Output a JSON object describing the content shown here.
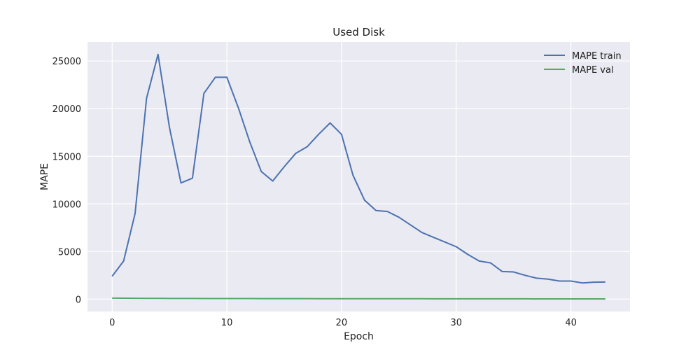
{
  "chart_data": {
    "type": "line",
    "title": "Used Disk",
    "xlabel": "Epoch",
    "ylabel": "MAPE",
    "xlim": [
      -2.15,
      45.15
    ],
    "ylim": [
      -1300,
      27000
    ],
    "xticks": [
      0,
      10,
      20,
      30,
      40
    ],
    "yticks": [
      0,
      5000,
      10000,
      15000,
      20000,
      25000
    ],
    "grid": true,
    "legend_position": "top-right",
    "background_color": "#eaeaf2",
    "grid_color": "#ffffff",
    "series": [
      {
        "name": "MAPE train",
        "color": "#4c72b0",
        "x": [
          0,
          1,
          2,
          3,
          4,
          5,
          6,
          7,
          8,
          9,
          10,
          11,
          12,
          13,
          14,
          15,
          16,
          17,
          18,
          19,
          20,
          21,
          22,
          23,
          24,
          25,
          26,
          27,
          28,
          29,
          30,
          31,
          32,
          33,
          34,
          35,
          36,
          37,
          38,
          39,
          40,
          41,
          42,
          43
        ],
        "values": [
          2400,
          4000,
          9000,
          21100,
          25700,
          18000,
          12200,
          12700,
          21600,
          23300,
          23300,
          20100,
          16500,
          13400,
          12400,
          13900,
          15300,
          16000,
          17300,
          18500,
          17300,
          13000,
          10400,
          9300,
          9200,
          8600,
          7800,
          7000,
          6500,
          6000,
          5500,
          4700,
          4000,
          3800,
          2900,
          2850,
          2500,
          2200,
          2100,
          1900,
          1900,
          1700,
          1780,
          1800
        ]
      },
      {
        "name": "MAPE val",
        "color": "#55a868",
        "x": [
          0,
          1,
          2,
          3,
          4,
          5,
          6,
          7,
          8,
          9,
          10,
          11,
          12,
          13,
          14,
          15,
          16,
          17,
          18,
          19,
          20,
          21,
          22,
          23,
          24,
          25,
          26,
          27,
          28,
          29,
          30,
          31,
          32,
          33,
          34,
          35,
          36,
          37,
          38,
          39,
          40,
          41,
          42,
          43
        ],
        "values": [
          110,
          100,
          90,
          80,
          75,
          70,
          68,
          66,
          64,
          62,
          60,
          58,
          56,
          54,
          52,
          50,
          48,
          47,
          46,
          45,
          44,
          43,
          42,
          41,
          40,
          39,
          38,
          37,
          36,
          35,
          34,
          33,
          32,
          31,
          30,
          29,
          28,
          27,
          26,
          25,
          24,
          23,
          22,
          21
        ]
      }
    ]
  }
}
